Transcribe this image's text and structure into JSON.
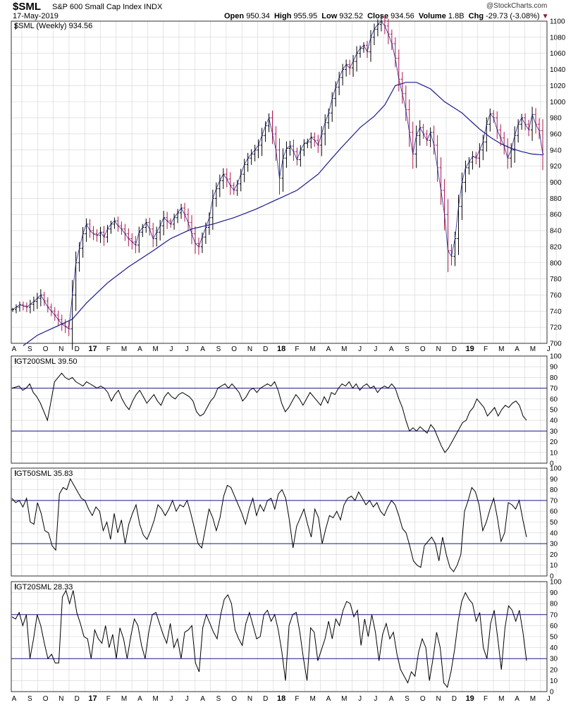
{
  "header": {
    "ticker": "$SML",
    "description": "S&P 600 Small Cap Index",
    "exchange": "INDX",
    "date": "17-May-2019",
    "open_label": "Open",
    "open": "950.34",
    "high_label": "High",
    "high": "955.95",
    "low_label": "Low",
    "low": "932.52",
    "close_label": "Close",
    "close": "934.56",
    "volume_label": "Volume",
    "volume": "1.8B",
    "chg_label": "Chg",
    "chg": "-29.73 (-3.08%)",
    "copyright": "@StockCharts.com"
  },
  "colors": {
    "up": "#000000",
    "down": "#b0154a",
    "ma": "#1a1a8c",
    "ref_line": "#1a1a8c",
    "grid": "#d4d4d4",
    "indicator": "#000000"
  },
  "chart_data": [
    {
      "type": "line",
      "title": "$SML (Weekly) 934.56",
      "interval": "weekly",
      "ylim": [
        700,
        1100
      ],
      "yticks": [
        700,
        720,
        740,
        760,
        780,
        800,
        820,
        840,
        860,
        880,
        900,
        920,
        940,
        960,
        980,
        1000,
        1020,
        1040,
        1060,
        1080,
        1100
      ],
      "x_month_labels": [
        "A",
        "S",
        "O",
        "N",
        "D",
        "17",
        "F",
        "M",
        "A",
        "M",
        "J",
        "J",
        "A",
        "S",
        "O",
        "N",
        "D",
        "18",
        "F",
        "M",
        "A",
        "M",
        "J",
        "J",
        "A",
        "S",
        "O",
        "N",
        "D",
        "19",
        "F",
        "M",
        "A",
        "M",
        "J"
      ],
      "x_start": "2016-08",
      "grid": true,
      "close_anchors": [
        [
          0,
          742
        ],
        [
          2,
          748
        ],
        [
          4,
          745
        ],
        [
          6,
          752
        ],
        [
          8,
          760
        ],
        [
          10,
          745
        ],
        [
          12,
          735
        ],
        [
          14,
          724
        ],
        [
          16,
          718
        ],
        [
          17,
          760
        ],
        [
          18,
          800
        ],
        [
          19,
          818
        ],
        [
          20,
          836
        ],
        [
          21,
          848
        ],
        [
          22,
          840
        ],
        [
          23,
          836
        ],
        [
          24,
          834
        ],
        [
          25,
          838
        ],
        [
          26,
          832
        ],
        [
          27,
          842
        ],
        [
          28,
          848
        ],
        [
          29,
          852
        ],
        [
          30,
          846
        ],
        [
          31,
          842
        ],
        [
          32,
          836
        ],
        [
          33,
          830
        ],
        [
          34,
          826
        ],
        [
          35,
          822
        ],
        [
          36,
          838
        ],
        [
          37,
          844
        ],
        [
          38,
          850
        ],
        [
          39,
          842
        ],
        [
          40,
          830
        ],
        [
          41,
          838
        ],
        [
          42,
          846
        ],
        [
          43,
          856
        ],
        [
          44,
          852
        ],
        [
          45,
          848
        ],
        [
          46,
          856
        ],
        [
          47,
          862
        ],
        [
          48,
          868
        ],
        [
          49,
          860
        ],
        [
          50,
          850
        ],
        [
          51,
          836
        ],
        [
          52,
          824
        ],
        [
          53,
          820
        ],
        [
          54,
          832
        ],
        [
          55,
          844
        ],
        [
          56,
          856
        ],
        [
          57,
          880
        ],
        [
          58,
          892
        ],
        [
          59,
          902
        ],
        [
          60,
          910
        ],
        [
          61,
          904
        ],
        [
          62,
          896
        ],
        [
          63,
          890
        ],
        [
          64,
          898
        ],
        [
          65,
          910
        ],
        [
          66,
          922
        ],
        [
          67,
          930
        ],
        [
          68,
          935
        ],
        [
          69,
          940
        ],
        [
          70,
          946
        ],
        [
          71,
          958
        ],
        [
          72,
          970
        ],
        [
          73,
          980
        ],
        [
          74,
          960
        ],
        [
          75,
          940
        ],
        [
          76,
          905
        ],
        [
          77,
          930
        ],
        [
          78,
          942
        ],
        [
          79,
          945
        ],
        [
          80,
          938
        ],
        [
          81,
          928
        ],
        [
          82,
          940
        ],
        [
          83,
          948
        ],
        [
          84,
          950
        ],
        [
          85,
          956
        ],
        [
          86,
          952
        ],
        [
          87,
          946
        ],
        [
          88,
          960
        ],
        [
          89,
          974
        ],
        [
          90,
          986
        ],
        [
          91,
          1004
        ],
        [
          92,
          1018
        ],
        [
          93,
          1030
        ],
        [
          94,
          1040
        ],
        [
          95,
          1046
        ],
        [
          96,
          1042
        ],
        [
          97,
          1050
        ],
        [
          98,
          1060
        ],
        [
          99,
          1066
        ],
        [
          100,
          1070
        ],
        [
          101,
          1062
        ],
        [
          102,
          1080
        ],
        [
          103,
          1090
        ],
        [
          104,
          1096
        ],
        [
          105,
          1100
        ],
        [
          106,
          1094
        ],
        [
          107,
          1084
        ],
        [
          108,
          1072
        ],
        [
          109,
          1054
        ],
        [
          110,
          1028
        ],
        [
          111,
          1010
        ],
        [
          112,
          990
        ],
        [
          113,
          962
        ],
        [
          114,
          935
        ],
        [
          115,
          958
        ],
        [
          116,
          968
        ],
        [
          117,
          960
        ],
        [
          118,
          952
        ],
        [
          119,
          962
        ],
        [
          120,
          946
        ],
        [
          121,
          918
        ],
        [
          122,
          890
        ],
        [
          123,
          860
        ],
        [
          124,
          815
        ],
        [
          125,
          808
        ],
        [
          126,
          830
        ],
        [
          127,
          870
        ],
        [
          128,
          900
        ],
        [
          129,
          918
        ],
        [
          130,
          925
        ],
        [
          131,
          932
        ],
        [
          132,
          930
        ],
        [
          133,
          940
        ],
        [
          134,
          950
        ],
        [
          135,
          972
        ],
        [
          136,
          985
        ],
        [
          137,
          980
        ],
        [
          138,
          965
        ],
        [
          139,
          955
        ],
        [
          140,
          945
        ],
        [
          141,
          930
        ],
        [
          142,
          940
        ],
        [
          143,
          958
        ],
        [
          144,
          972
        ],
        [
          145,
          980
        ],
        [
          146,
          972
        ],
        [
          147,
          965
        ],
        [
          148,
          984
        ],
        [
          149,
          972
        ],
        [
          150,
          964
        ],
        [
          151,
          935
        ]
      ],
      "sma_label": "40-week moving average (no printed label)",
      "sma_anchors": [
        [
          3,
          697
        ],
        [
          7,
          710
        ],
        [
          12,
          720
        ],
        [
          17,
          730
        ],
        [
          21,
          750
        ],
        [
          27,
          775
        ],
        [
          33,
          795
        ],
        [
          39,
          812
        ],
        [
          45,
          830
        ],
        [
          51,
          842
        ],
        [
          57,
          848
        ],
        [
          63,
          856
        ],
        [
          69,
          866
        ],
        [
          75,
          878
        ],
        [
          81,
          890
        ],
        [
          87,
          910
        ],
        [
          93,
          940
        ],
        [
          99,
          968
        ],
        [
          103,
          982
        ],
        [
          106,
          996
        ],
        [
          109,
          1020
        ],
        [
          112,
          1024
        ],
        [
          115,
          1024
        ],
        [
          119,
          1016
        ],
        [
          123,
          1000
        ],
        [
          128,
          986
        ],
        [
          133,
          966
        ],
        [
          136,
          956
        ],
        [
          139,
          948
        ],
        [
          142,
          942
        ],
        [
          145,
          938
        ],
        [
          148,
          935
        ],
        [
          151,
          934
        ]
      ],
      "series": []
    },
    {
      "type": "line",
      "title": "!GT200SML 39.50",
      "ylim": [
        0,
        100
      ],
      "yticks": [
        0,
        10,
        20,
        30,
        40,
        50,
        60,
        70,
        80,
        90,
        100
      ],
      "reference_lines": [
        30,
        70
      ],
      "series": [
        {
          "values": [
            70,
            71,
            72,
            68,
            70,
            74,
            66,
            62,
            56,
            48,
            40,
            58,
            76,
            80,
            84,
            80,
            78,
            80,
            76,
            74,
            72,
            76,
            74,
            72,
            70,
            72,
            70,
            66,
            58,
            64,
            68,
            60,
            54,
            50,
            58,
            64,
            68,
            62,
            56,
            60,
            64,
            58,
            54,
            62,
            66,
            62,
            60,
            64,
            66,
            64,
            62,
            58,
            48,
            44,
            46,
            52,
            58,
            62,
            70,
            72,
            74,
            70,
            74,
            70,
            66,
            58,
            62,
            68,
            70,
            66,
            70,
            72,
            74,
            72,
            76,
            68,
            56,
            48,
            52,
            58,
            64,
            60,
            54,
            60,
            66,
            62,
            58,
            54,
            62,
            56,
            66,
            64,
            70,
            74,
            72,
            76,
            70,
            74,
            68,
            72,
            74,
            70,
            72,
            66,
            70,
            72,
            70,
            74,
            70,
            60,
            52,
            40,
            30,
            33,
            30,
            34,
            31,
            28,
            36,
            32,
            24,
            16,
            10,
            14,
            20,
            26,
            32,
            38,
            40,
            48,
            52,
            60,
            56,
            52,
            44,
            48,
            52,
            44,
            50,
            54,
            52,
            56,
            58,
            54,
            44,
            40
          ]
        }
      ]
    },
    {
      "type": "line",
      "title": "!GT50SML 35.83",
      "ylim": [
        0,
        100
      ],
      "yticks": [
        0,
        10,
        20,
        30,
        40,
        50,
        60,
        70,
        80,
        90,
        100
      ],
      "reference_lines": [
        30,
        70
      ],
      "series": [
        {
          "values": [
            72,
            68,
            70,
            64,
            72,
            50,
            48,
            68,
            58,
            42,
            40,
            28,
            24,
            76,
            82,
            80,
            90,
            84,
            78,
            72,
            70,
            62,
            56,
            64,
            60,
            42,
            50,
            34,
            58,
            40,
            52,
            30,
            48,
            58,
            66,
            48,
            38,
            34,
            42,
            52,
            66,
            62,
            56,
            62,
            70,
            60,
            66,
            64,
            70,
            58,
            44,
            30,
            26,
            44,
            62,
            54,
            42,
            54,
            74,
            84,
            82,
            74,
            66,
            58,
            48,
            62,
            72,
            56,
            66,
            60,
            70,
            72,
            62,
            76,
            80,
            72,
            52,
            26,
            46,
            54,
            62,
            48,
            36,
            62,
            54,
            30,
            44,
            56,
            54,
            60,
            52,
            66,
            72,
            74,
            70,
            78,
            72,
            66,
            70,
            64,
            68,
            60,
            56,
            64,
            70,
            66,
            56,
            44,
            40,
            28,
            14,
            10,
            8,
            28,
            32,
            36,
            30,
            14,
            36,
            20,
            8,
            4,
            10,
            20,
            60,
            70,
            82,
            78,
            66,
            42,
            50,
            62,
            72,
            54,
            32,
            40,
            68,
            66,
            62,
            70,
            52,
            36
          ]
        }
      ]
    },
    {
      "type": "line",
      "title": "!GT20SML 28.33",
      "ylim": [
        0,
        100
      ],
      "yticks": [
        0,
        10,
        20,
        30,
        40,
        50,
        60,
        70,
        80,
        90,
        100
      ],
      "reference_lines": [
        30,
        70
      ],
      "series": [
        {
          "values": [
            68,
            66,
            72,
            60,
            70,
            30,
            48,
            70,
            60,
            44,
            30,
            34,
            26,
            26,
            86,
            92,
            80,
            92,
            72,
            62,
            50,
            48,
            30,
            56,
            48,
            44,
            60,
            40,
            52,
            30,
            58,
            48,
            30,
            50,
            66,
            60,
            42,
            30,
            54,
            70,
            72,
            62,
            52,
            44,
            62,
            40,
            48,
            30,
            54,
            56,
            60,
            26,
            18,
            58,
            70,
            62,
            54,
            48,
            70,
            84,
            88,
            80,
            56,
            48,
            42,
            62,
            72,
            60,
            48,
            50,
            70,
            74,
            64,
            70,
            56,
            36,
            10,
            60,
            70,
            72,
            54,
            30,
            10,
            58,
            54,
            28,
            38,
            48,
            64,
            48,
            66,
            60,
            74,
            82,
            80,
            68,
            74,
            42,
            66,
            50,
            70,
            54,
            28,
            52,
            62,
            48,
            54,
            34,
            20,
            14,
            8,
            18,
            14,
            36,
            48,
            40,
            10,
            30,
            54,
            40,
            8,
            4,
            18,
            38,
            64,
            82,
            90,
            84,
            80,
            64,
            72,
            40,
            30,
            62,
            74,
            48,
            20,
            58,
            78,
            74,
            64,
            74,
            54,
            28
          ]
        }
      ]
    }
  ]
}
